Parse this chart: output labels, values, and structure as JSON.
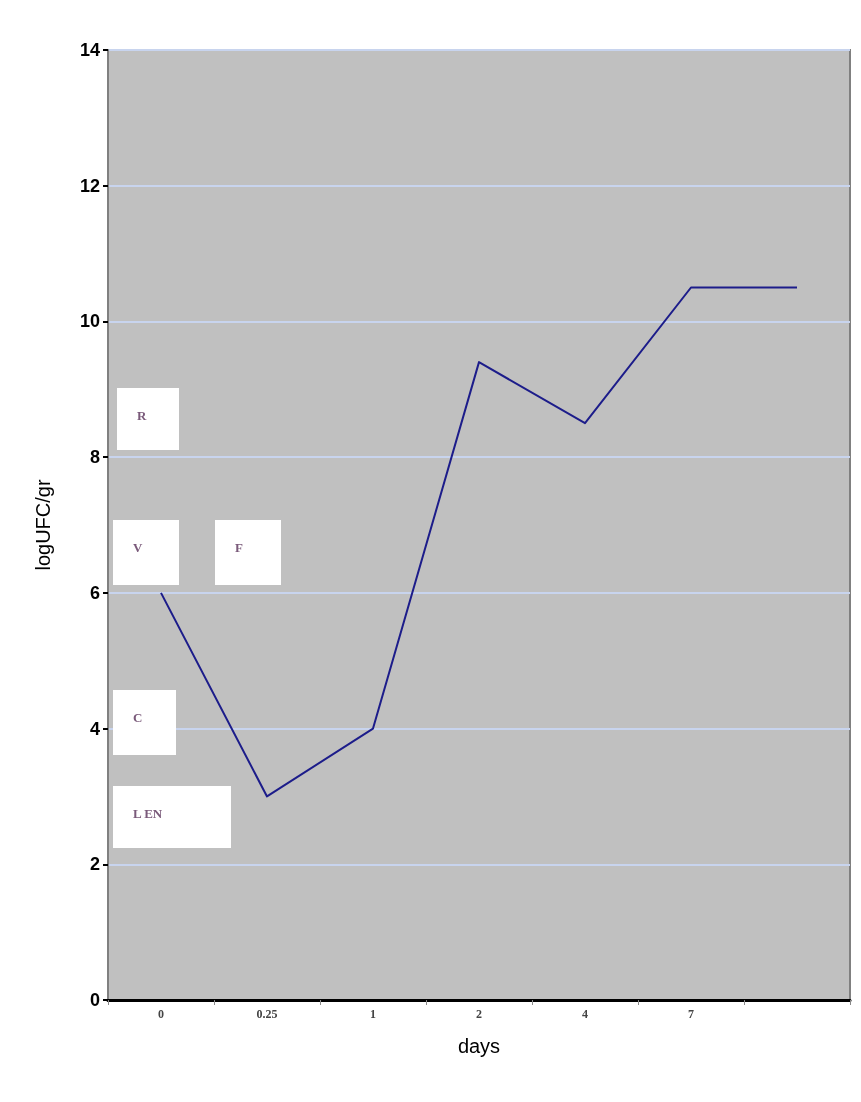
{
  "chart_data": {
    "type": "line",
    "xlabel": "days",
    "ylabel": "logUFC/gr",
    "categories": [
      "0",
      "0.25",
      "1",
      "2",
      "4",
      "7",
      null
    ],
    "series": [
      {
        "color": "#1c1c8a",
        "values": [
          6,
          3,
          4,
          9.4,
          8.5,
          10.5,
          10.5
        ]
      }
    ],
    "ylim": [
      0,
      14
    ],
    "yticks": [
      0,
      2,
      4,
      6,
      8,
      10,
      12,
      14
    ],
    "grid": "y",
    "marker": "none",
    "line_style": "solid",
    "annotations": [
      "R",
      "V",
      "F",
      "C",
      "L EN"
    ]
  }
}
